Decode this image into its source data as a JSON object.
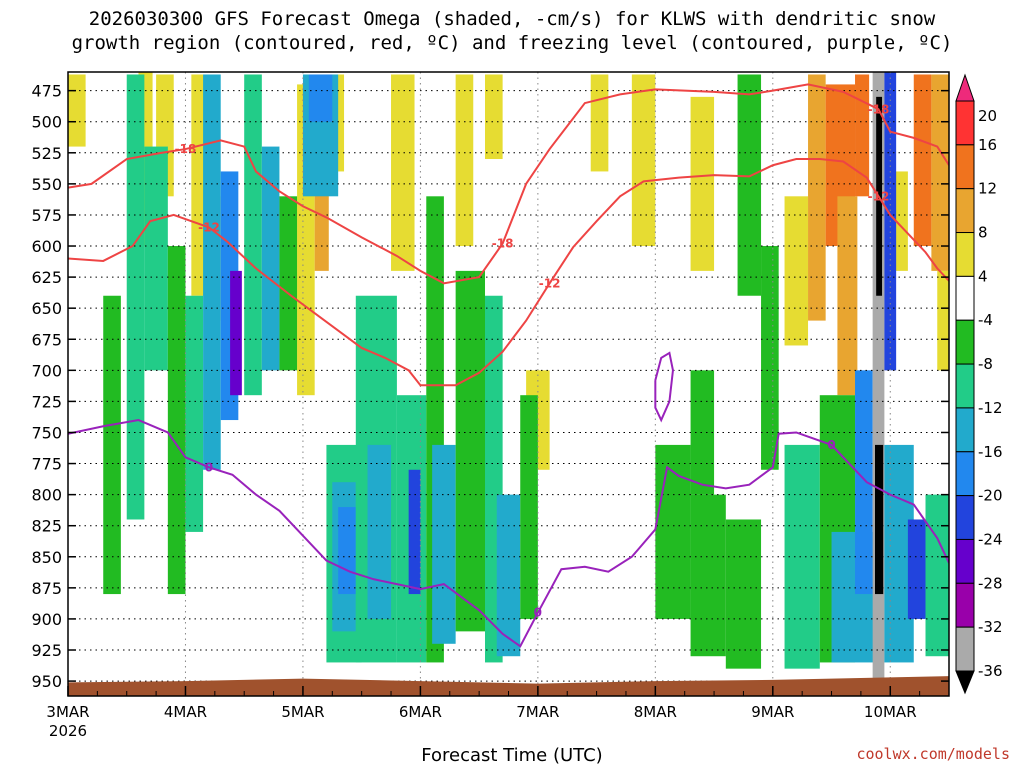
{
  "chart_data": {
    "type": "heatmap",
    "title_line1": "2026030300 GFS Forecast Omega (shaded, -cm/s) for KLWS with dendritic snow",
    "title_line2": "growth region (contoured, red, ºC) and freezing level (contoured, purple, ºC)",
    "xlabel": "Forecast Time (UTC)",
    "x_ticks": [
      {
        "label": "3MAR",
        "day": 0
      },
      {
        "label": "4MAR",
        "day": 1
      },
      {
        "label": "5MAR",
        "day": 2
      },
      {
        "label": "6MAR",
        "day": 3
      },
      {
        "label": "7MAR",
        "day": 4
      },
      {
        "label": "8MAR",
        "day": 5
      },
      {
        "label": "9MAR",
        "day": 6
      },
      {
        "label": "10MAR",
        "day": 7
      }
    ],
    "x_year_label": "2026",
    "x_range_days": [
      0,
      7.5
    ],
    "y_ticks": [
      "475",
      "500",
      "525",
      "550",
      "575",
      "600",
      "625",
      "650",
      "675",
      "700",
      "725",
      "750",
      "775",
      "800",
      "825",
      "850",
      "875",
      "900",
      "925",
      "950"
    ],
    "y_range_hpa": [
      460,
      962
    ],
    "colorbar": {
      "labels": [
        "20",
        "16",
        "12",
        "8",
        "4",
        "-4",
        "-8",
        "-12",
        "-16",
        "-20",
        "-24",
        "-28",
        "-32",
        "-36"
      ],
      "colors": [
        "#ee2a7b",
        "#ff3333",
        "#f0731e",
        "#e8a530",
        "#e6dc32",
        "#ffffff",
        "#22bb22",
        "#22cc88",
        "#22aacc",
        "#2288ee",
        "#2244dd",
        "#6600cc",
        "#9900aa",
        "#aaaaaa",
        "#000000"
      ]
    },
    "dgz_contours": [
      {
        "level": "-18",
        "label": "-18",
        "points": [
          [
            0,
            553
          ],
          [
            0.2,
            550
          ],
          [
            0.5,
            530
          ],
          [
            0.8,
            525
          ],
          [
            1.0,
            522
          ],
          [
            1.3,
            515
          ],
          [
            1.5,
            520
          ],
          [
            1.6,
            540
          ],
          [
            1.8,
            556
          ],
          [
            2.0,
            568
          ],
          [
            2.2,
            577
          ],
          [
            2.5,
            593
          ],
          [
            2.8,
            608
          ],
          [
            3.0,
            620
          ],
          [
            3.2,
            630
          ],
          [
            3.5,
            625
          ],
          [
            3.7,
            598
          ],
          [
            3.9,
            550
          ],
          [
            4.1,
            522
          ],
          [
            4.4,
            485
          ],
          [
            4.7,
            478
          ],
          [
            5.0,
            474
          ],
          [
            5.5,
            476
          ],
          [
            5.8,
            478
          ],
          [
            6.0,
            475
          ],
          [
            6.3,
            470
          ],
          [
            6.6,
            476
          ],
          [
            6.9,
            490
          ],
          [
            7.0,
            508
          ],
          [
            7.2,
            513
          ],
          [
            7.4,
            520
          ],
          [
            7.5,
            535
          ]
        ]
      },
      {
        "level": "-12",
        "label": "-12",
        "points": [
          [
            0,
            610
          ],
          [
            0.3,
            612
          ],
          [
            0.55,
            600
          ],
          [
            0.7,
            580
          ],
          [
            0.9,
            575
          ],
          [
            1.2,
            585
          ],
          [
            1.35,
            596
          ],
          [
            1.6,
            618
          ],
          [
            1.9,
            640
          ],
          [
            2.1,
            654
          ],
          [
            2.3,
            668
          ],
          [
            2.5,
            682
          ],
          [
            2.7,
            690
          ],
          [
            2.9,
            700
          ],
          [
            3.0,
            712
          ],
          [
            3.3,
            712
          ],
          [
            3.5,
            702
          ],
          [
            3.7,
            685
          ],
          [
            3.9,
            660
          ],
          [
            4.1,
            630
          ],
          [
            4.3,
            601
          ],
          [
            4.5,
            580
          ],
          [
            4.7,
            560
          ],
          [
            4.9,
            548
          ],
          [
            5.2,
            545
          ],
          [
            5.5,
            543
          ],
          [
            5.8,
            544
          ],
          [
            6.0,
            535
          ],
          [
            6.2,
            530
          ],
          [
            6.4,
            530
          ],
          [
            6.6,
            532
          ],
          [
            6.8,
            545
          ],
          [
            6.9,
            560
          ],
          [
            7.0,
            575
          ],
          [
            7.15,
            590
          ],
          [
            7.3,
            605
          ],
          [
            7.4,
            618
          ],
          [
            7.5,
            628
          ]
        ]
      }
    ],
    "freezing_contours": [
      {
        "level": "0",
        "label": "0",
        "points": [
          [
            0,
            751
          ],
          [
            0.3,
            745
          ],
          [
            0.6,
            740
          ],
          [
            0.85,
            750
          ],
          [
            1.0,
            770
          ],
          [
            1.2,
            778
          ],
          [
            1.4,
            784
          ],
          [
            1.6,
            800
          ],
          [
            1.8,
            813
          ],
          [
            2.0,
            833
          ],
          [
            2.2,
            853
          ],
          [
            2.4,
            862
          ],
          [
            2.6,
            868
          ],
          [
            2.8,
            872
          ],
          [
            3.0,
            876
          ],
          [
            3.2,
            872
          ],
          [
            3.5,
            893
          ],
          [
            3.7,
            912
          ],
          [
            3.85,
            922
          ],
          [
            4.0,
            895
          ],
          [
            4.2,
            860
          ],
          [
            4.4,
            858
          ],
          [
            4.6,
            862
          ],
          [
            4.8,
            850
          ],
          [
            5.0,
            828
          ],
          [
            5.1,
            778
          ],
          [
            5.2,
            785
          ],
          [
            5.4,
            792
          ],
          [
            5.6,
            795
          ],
          [
            5.8,
            792
          ],
          [
            6.0,
            778
          ],
          [
            6.05,
            751
          ],
          [
            6.2,
            750
          ],
          [
            6.5,
            760
          ],
          [
            6.8,
            790
          ],
          [
            7.0,
            800
          ],
          [
            7.2,
            808
          ],
          [
            7.4,
            835
          ],
          [
            7.5,
            855
          ]
        ]
      },
      {
        "level": "0",
        "label": "",
        "points": [
          [
            5.0,
            708
          ],
          [
            5.05,
            690
          ],
          [
            5.12,
            686
          ],
          [
            5.15,
            700
          ],
          [
            5.12,
            725
          ],
          [
            5.05,
            740
          ],
          [
            5.0,
            730
          ],
          [
            5.0,
            708
          ]
        ]
      }
    ],
    "omega_cells": [
      {
        "t0": 0.0,
        "t1": 0.15,
        "p0": 462,
        "p1": 520,
        "v": 5
      },
      {
        "t0": 0.6,
        "t1": 0.72,
        "p0": 460,
        "p1": 600,
        "v": 5
      },
      {
        "t0": 0.75,
        "t1": 0.9,
        "p0": 462,
        "p1": 560,
        "v": 6
      },
      {
        "t0": 1.05,
        "t1": 1.2,
        "p0": 462,
        "p1": 640,
        "v": 6
      },
      {
        "t0": 1.2,
        "t1": 1.3,
        "p0": 560,
        "p1": 660,
        "v": 5
      },
      {
        "t0": 1.95,
        "t1": 2.1,
        "p0": 470,
        "p1": 720,
        "v": 6
      },
      {
        "t0": 2.1,
        "t1": 2.22,
        "p0": 462,
        "p1": 620,
        "v": 10
      },
      {
        "t0": 2.2,
        "t1": 2.35,
        "p0": 462,
        "p1": 540,
        "v": 6
      },
      {
        "t0": 2.75,
        "t1": 2.95,
        "p0": 462,
        "p1": 620,
        "v": 6
      },
      {
        "t0": 3.3,
        "t1": 3.45,
        "p0": 462,
        "p1": 600,
        "v": 5
      },
      {
        "t0": 3.4,
        "t1": 3.55,
        "p0": 660,
        "p1": 780,
        "v": 5
      },
      {
        "t0": 3.55,
        "t1": 3.7,
        "p0": 462,
        "p1": 530,
        "v": 5
      },
      {
        "t0": 3.9,
        "t1": 4.1,
        "p0": 700,
        "p1": 780,
        "v": 5
      },
      {
        "t0": 4.45,
        "t1": 4.6,
        "p0": 462,
        "p1": 540,
        "v": 5
      },
      {
        "t0": 4.8,
        "t1": 5.0,
        "p0": 462,
        "p1": 600,
        "v": 6
      },
      {
        "t0": 5.3,
        "t1": 5.5,
        "p0": 480,
        "p1": 620,
        "v": 5
      },
      {
        "t0": 6.1,
        "t1": 6.3,
        "p0": 560,
        "p1": 680,
        "v": 6
      },
      {
        "t0": 6.3,
        "t1": 6.45,
        "p0": 462,
        "p1": 660,
        "v": 10
      },
      {
        "t0": 6.45,
        "t1": 6.7,
        "p0": 470,
        "p1": 600,
        "v": 12
      },
      {
        "t0": 6.55,
        "t1": 6.72,
        "p0": 560,
        "p1": 720,
        "v": 8
      },
      {
        "t0": 6.7,
        "t1": 6.82,
        "p0": 462,
        "p1": 560,
        "v": 12
      },
      {
        "t0": 7.0,
        "t1": 7.15,
        "p0": 540,
        "p1": 620,
        "v": 6
      },
      {
        "t0": 7.2,
        "t1": 7.35,
        "p0": 462,
        "p1": 600,
        "v": 14
      },
      {
        "t0": 7.35,
        "t1": 7.5,
        "p0": 462,
        "p1": 620,
        "v": 10
      },
      {
        "t0": 7.4,
        "t1": 7.5,
        "p0": 620,
        "p1": 700,
        "v": 6
      },
      {
        "t0": 0.3,
        "t1": 0.45,
        "p0": 640,
        "p1": 880,
        "v": -5
      },
      {
        "t0": 0.5,
        "t1": 0.65,
        "p0": 462,
        "p1": 820,
        "v": -10
      },
      {
        "t0": 0.65,
        "t1": 0.85,
        "p0": 520,
        "p1": 700,
        "v": -8
      },
      {
        "t0": 0.85,
        "t1": 1.0,
        "p0": 600,
        "p1": 880,
        "v": -6
      },
      {
        "t0": 1.0,
        "t1": 1.15,
        "p0": 640,
        "p1": 830,
        "v": -9
      },
      {
        "t0": 1.15,
        "t1": 1.3,
        "p0": 462,
        "p1": 780,
        "v": -13
      },
      {
        "t0": 1.3,
        "t1": 1.45,
        "p0": 540,
        "p1": 740,
        "v": -17
      },
      {
        "t0": 1.38,
        "t1": 1.48,
        "p0": 620,
        "p1": 720,
        "v": -25
      },
      {
        "t0": 1.5,
        "t1": 1.65,
        "p0": 462,
        "p1": 720,
        "v": -10
      },
      {
        "t0": 1.65,
        "t1": 1.8,
        "p0": 520,
        "p1": 700,
        "v": -12
      },
      {
        "t0": 1.8,
        "t1": 1.95,
        "p0": 560,
        "p1": 700,
        "v": -7
      },
      {
        "t0": 2.0,
        "t1": 2.3,
        "p0": 462,
        "p1": 560,
        "v": -12
      },
      {
        "t0": 2.05,
        "t1": 2.25,
        "p0": 462,
        "p1": 500,
        "v": -17
      },
      {
        "t0": 2.2,
        "t1": 2.5,
        "p0": 760,
        "p1": 935,
        "v": -9
      },
      {
        "t0": 2.25,
        "t1": 2.45,
        "p0": 790,
        "p1": 910,
        "v": -14
      },
      {
        "t0": 2.3,
        "t1": 2.45,
        "p0": 810,
        "p1": 880,
        "v": -18
      },
      {
        "t0": 2.45,
        "t1": 2.8,
        "p0": 640,
        "p1": 935,
        "v": -8
      },
      {
        "t0": 2.55,
        "t1": 2.75,
        "p0": 760,
        "p1": 900,
        "v": -13
      },
      {
        "t0": 2.8,
        "t1": 3.05,
        "p0": 720,
        "p1": 935,
        "v": -10
      },
      {
        "t0": 2.9,
        "t1": 3.0,
        "p0": 780,
        "p1": 880,
        "v": -22
      },
      {
        "t0": 3.05,
        "t1": 3.2,
        "p0": 560,
        "p1": 935,
        "v": -7
      },
      {
        "t0": 3.1,
        "t1": 3.3,
        "p0": 760,
        "p1": 920,
        "v": -13
      },
      {
        "t0": 3.3,
        "t1": 3.55,
        "p0": 620,
        "p1": 910,
        "v": -6
      },
      {
        "t0": 3.55,
        "t1": 3.7,
        "p0": 640,
        "p1": 935,
        "v": -9
      },
      {
        "t0": 3.65,
        "t1": 3.85,
        "p0": 800,
        "p1": 930,
        "v": -13
      },
      {
        "t0": 3.85,
        "t1": 4.0,
        "p0": 720,
        "p1": 900,
        "v": -6
      },
      {
        "t0": 5.0,
        "t1": 5.3,
        "p0": 760,
        "p1": 900,
        "v": -6
      },
      {
        "t0": 5.3,
        "t1": 5.6,
        "p0": 800,
        "p1": 930,
        "v": -7
      },
      {
        "t0": 5.6,
        "t1": 5.9,
        "p0": 820,
        "p1": 940,
        "v": -6
      },
      {
        "t0": 5.3,
        "t1": 5.5,
        "p0": 700,
        "p1": 800,
        "v": -6
      },
      {
        "t0": 5.7,
        "t1": 5.9,
        "p0": 462,
        "p1": 640,
        "v": -6
      },
      {
        "t0": 5.9,
        "t1": 6.05,
        "p0": 600,
        "p1": 780,
        "v": -6
      },
      {
        "t0": 6.1,
        "t1": 6.4,
        "p0": 760,
        "p1": 940,
        "v": -8
      },
      {
        "t0": 6.4,
        "t1": 6.7,
        "p0": 720,
        "p1": 935,
        "v": -6
      },
      {
        "t0": 6.5,
        "t1": 6.9,
        "p0": 830,
        "p1": 935,
        "v": -14
      },
      {
        "t0": 6.7,
        "t1": 6.85,
        "p0": 700,
        "p1": 880,
        "v": -18
      },
      {
        "t0": 6.85,
        "t1": 6.95,
        "p0": 460,
        "p1": 962,
        "v": -34
      },
      {
        "t0": 6.88,
        "t1": 6.93,
        "p0": 480,
        "p1": 640,
        "v": -38
      },
      {
        "t0": 6.87,
        "t1": 6.94,
        "p0": 760,
        "p1": 880,
        "v": -38
      },
      {
        "t0": 6.95,
        "t1": 7.05,
        "p0": 460,
        "p1": 700,
        "v": -22
      },
      {
        "t0": 6.95,
        "t1": 7.2,
        "p0": 760,
        "p1": 935,
        "v": -12
      },
      {
        "t0": 7.15,
        "t1": 7.3,
        "p0": 820,
        "p1": 900,
        "v": -21
      },
      {
        "t0": 7.3,
        "t1": 7.5,
        "p0": 800,
        "p1": 930,
        "v": -8
      }
    ]
  }
}
